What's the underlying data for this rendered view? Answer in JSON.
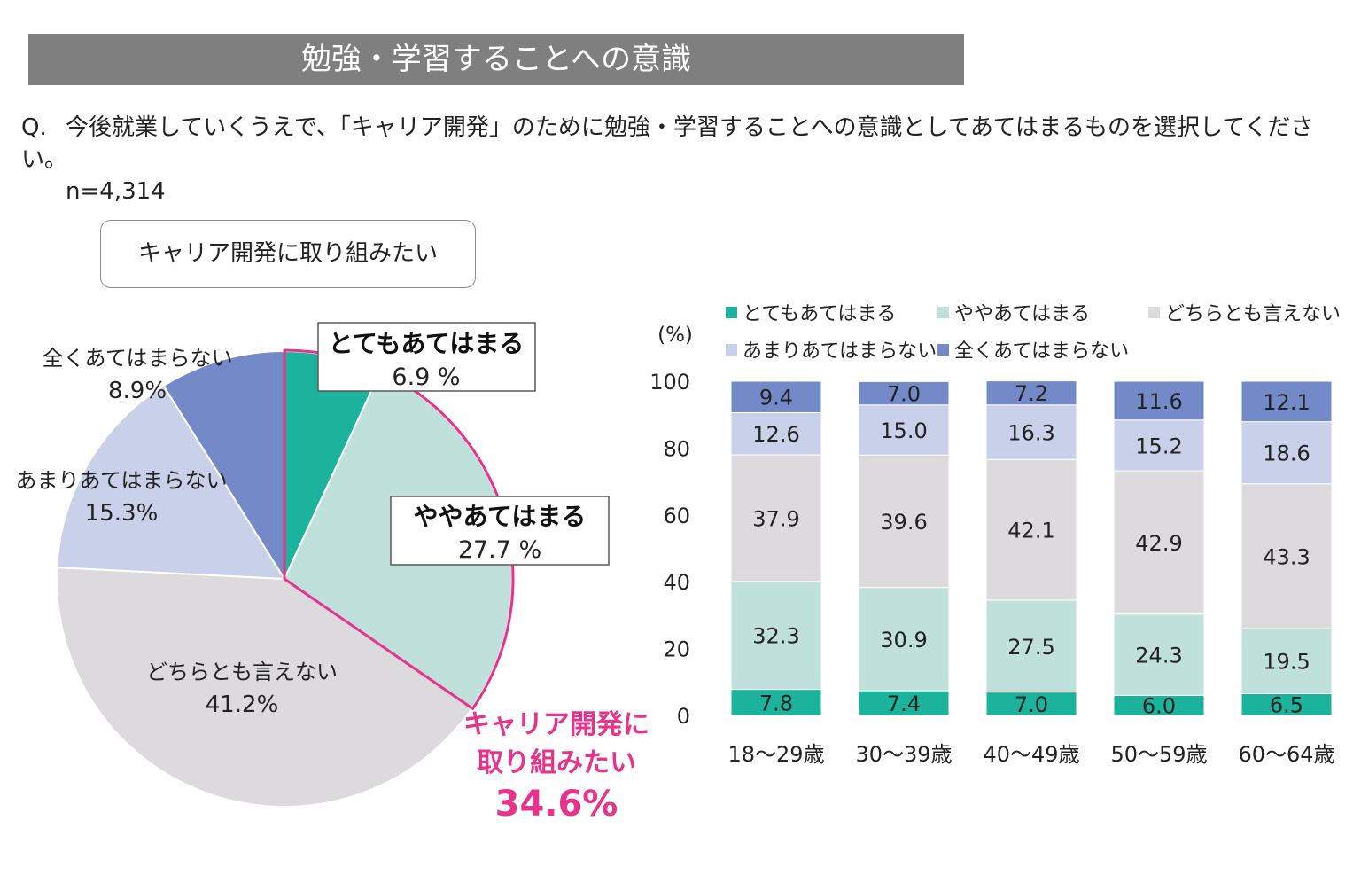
{
  "header": {
    "title": "勉強・学習することへの意識"
  },
  "question": {
    "prefix": "Q.",
    "text": "今後就業していくうえで、「キャリア開発」のために勉強・学習することへの意識としてあてはまるものを選択してください。",
    "sample": "n=4,314"
  },
  "pill_label": "キャリア開発に取り組みたい",
  "highlight": {
    "line1": "キャリア開発に",
    "line2": "取り組みたい",
    "value": "34.6%",
    "color": "#e8338c"
  },
  "chart_data": [
    {
      "type": "pie",
      "slices": [
        {
          "label": "とてもあてはまる",
          "value": 6.9,
          "display": "6.9 %",
          "color": "#1bb39c",
          "boxed": true
        },
        {
          "label": "ややあてはまる",
          "value": 27.7,
          "display": "27.7 %",
          "color": "#bfe0db",
          "boxed": true
        },
        {
          "label": "どちらとも言えない",
          "value": 41.2,
          "display": "41.2%",
          "color": "#dcdadd",
          "boxed": false
        },
        {
          "label": "あまりあてはまらない",
          "value": 15.3,
          "display": "15.3%",
          "color": "#c9d0ea",
          "boxed": false
        },
        {
          "label": "全くあてはまらない",
          "value": 8.9,
          "display": "8.9%",
          "color": "#7489c8",
          "boxed": false
        }
      ]
    },
    {
      "type": "bar",
      "stacked": true,
      "unit_label": "(%)",
      "ylim": [
        0,
        100
      ],
      "yticks": [
        0,
        20,
        40,
        60,
        80,
        100
      ],
      "categories": [
        "18～29歳",
        "30～39歳",
        "40～49歳",
        "50～59歳",
        "60～64歳"
      ],
      "series": [
        {
          "name": "とてもあてはまる",
          "color": "#1bb39c",
          "values": [
            7.8,
            7.4,
            7.0,
            6.0,
            6.5
          ]
        },
        {
          "name": "ややあてはまる",
          "color": "#bfe0db",
          "values": [
            32.3,
            30.9,
            27.5,
            24.3,
            19.5
          ]
        },
        {
          "name": "どちらとも言えない",
          "color": "#dcdadd",
          "values": [
            37.9,
            39.6,
            42.1,
            42.9,
            43.3
          ]
        },
        {
          "name": "あまりあてはまらない",
          "color": "#c9d0ea",
          "values": [
            12.6,
            15.0,
            16.3,
            15.2,
            18.6
          ]
        },
        {
          "name": "全くあてはまらない",
          "color": "#7489c8",
          "values": [
            9.4,
            7.0,
            7.2,
            11.6,
            12.1
          ]
        }
      ],
      "legend": "top"
    }
  ]
}
